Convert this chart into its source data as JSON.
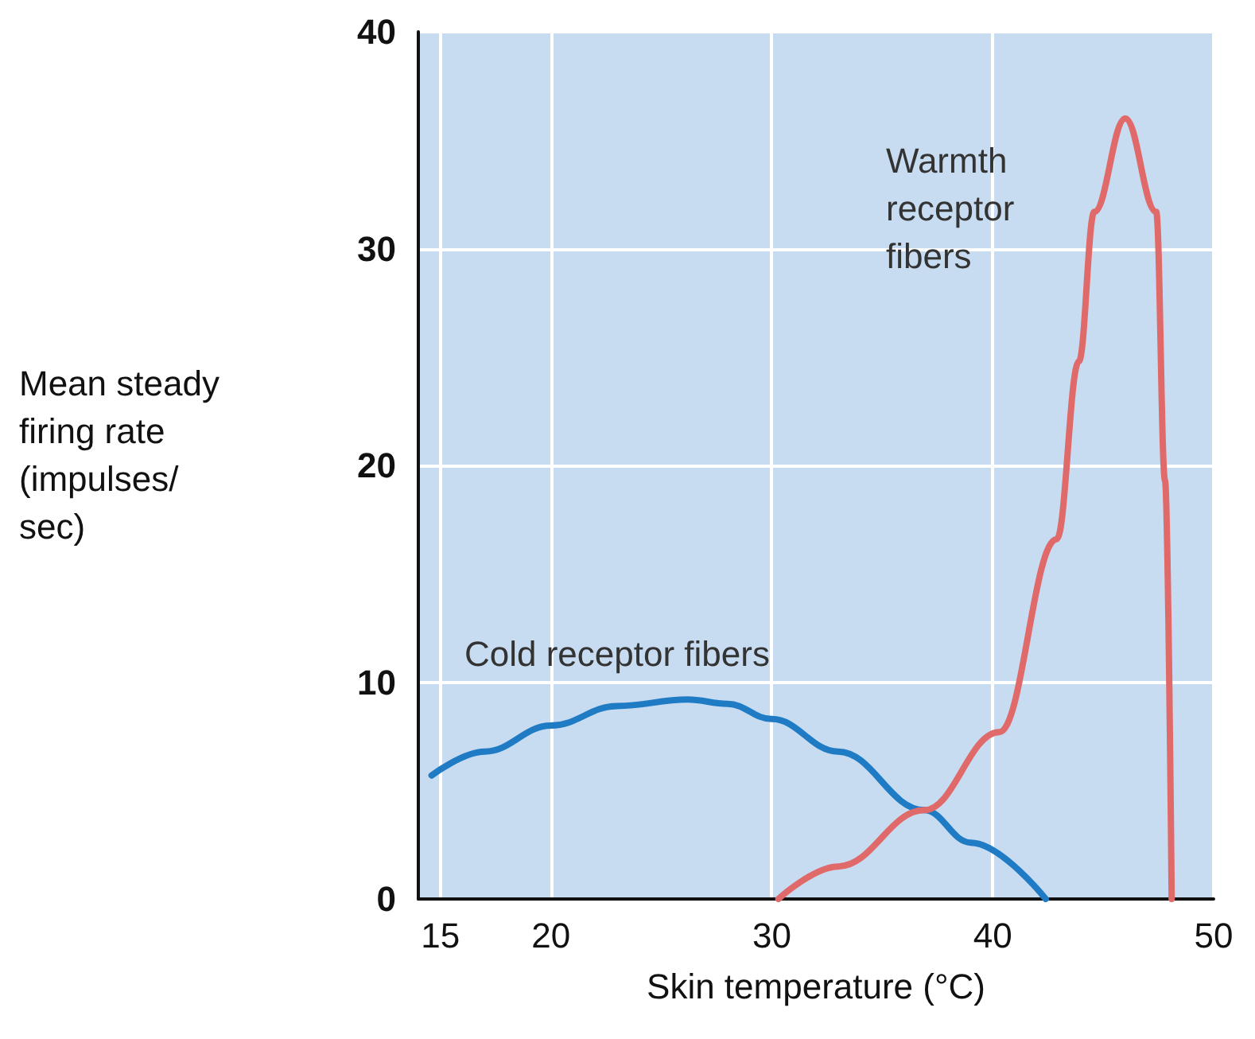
{
  "chart_data": {
    "type": "line",
    "xlabel": "Skin temperature (°C)",
    "ylabel": "Mean steady\nfiring rate\n(impulses/\nsec)",
    "xlim": [
      14,
      50
    ],
    "xticks": [
      15,
      20,
      30,
      40,
      50
    ],
    "ylim": [
      0,
      40
    ],
    "yticks": [
      0,
      10,
      20,
      30,
      40
    ],
    "grid": true,
    "marker": "none",
    "line_style": "solid",
    "series": [
      {
        "color": "#1f7bc4",
        "x": [
          14.6,
          17,
          20,
          23,
          26.2,
          28,
          30,
          33,
          36.9,
          39,
          42.4
        ],
        "values": [
          5.7,
          6.8,
          8.0,
          8.9,
          9.2,
          9.0,
          8.3,
          6.8,
          4.1,
          2.6,
          0
        ]
      },
      {
        "color": "#e06a6a",
        "x": [
          30.3,
          33,
          36.9,
          40.3,
          42.9,
          43.9,
          44.6,
          46,
          47.4,
          47.8,
          48.1
        ],
        "values": [
          0,
          1.5,
          4.1,
          7.7,
          16.6,
          24.8,
          31.7,
          36,
          31.7,
          19.3,
          0
        ]
      }
    ],
    "annotations": [
      "Warmth\nreceptor\nfibers",
      "Cold receptor fibers"
    ]
  }
}
